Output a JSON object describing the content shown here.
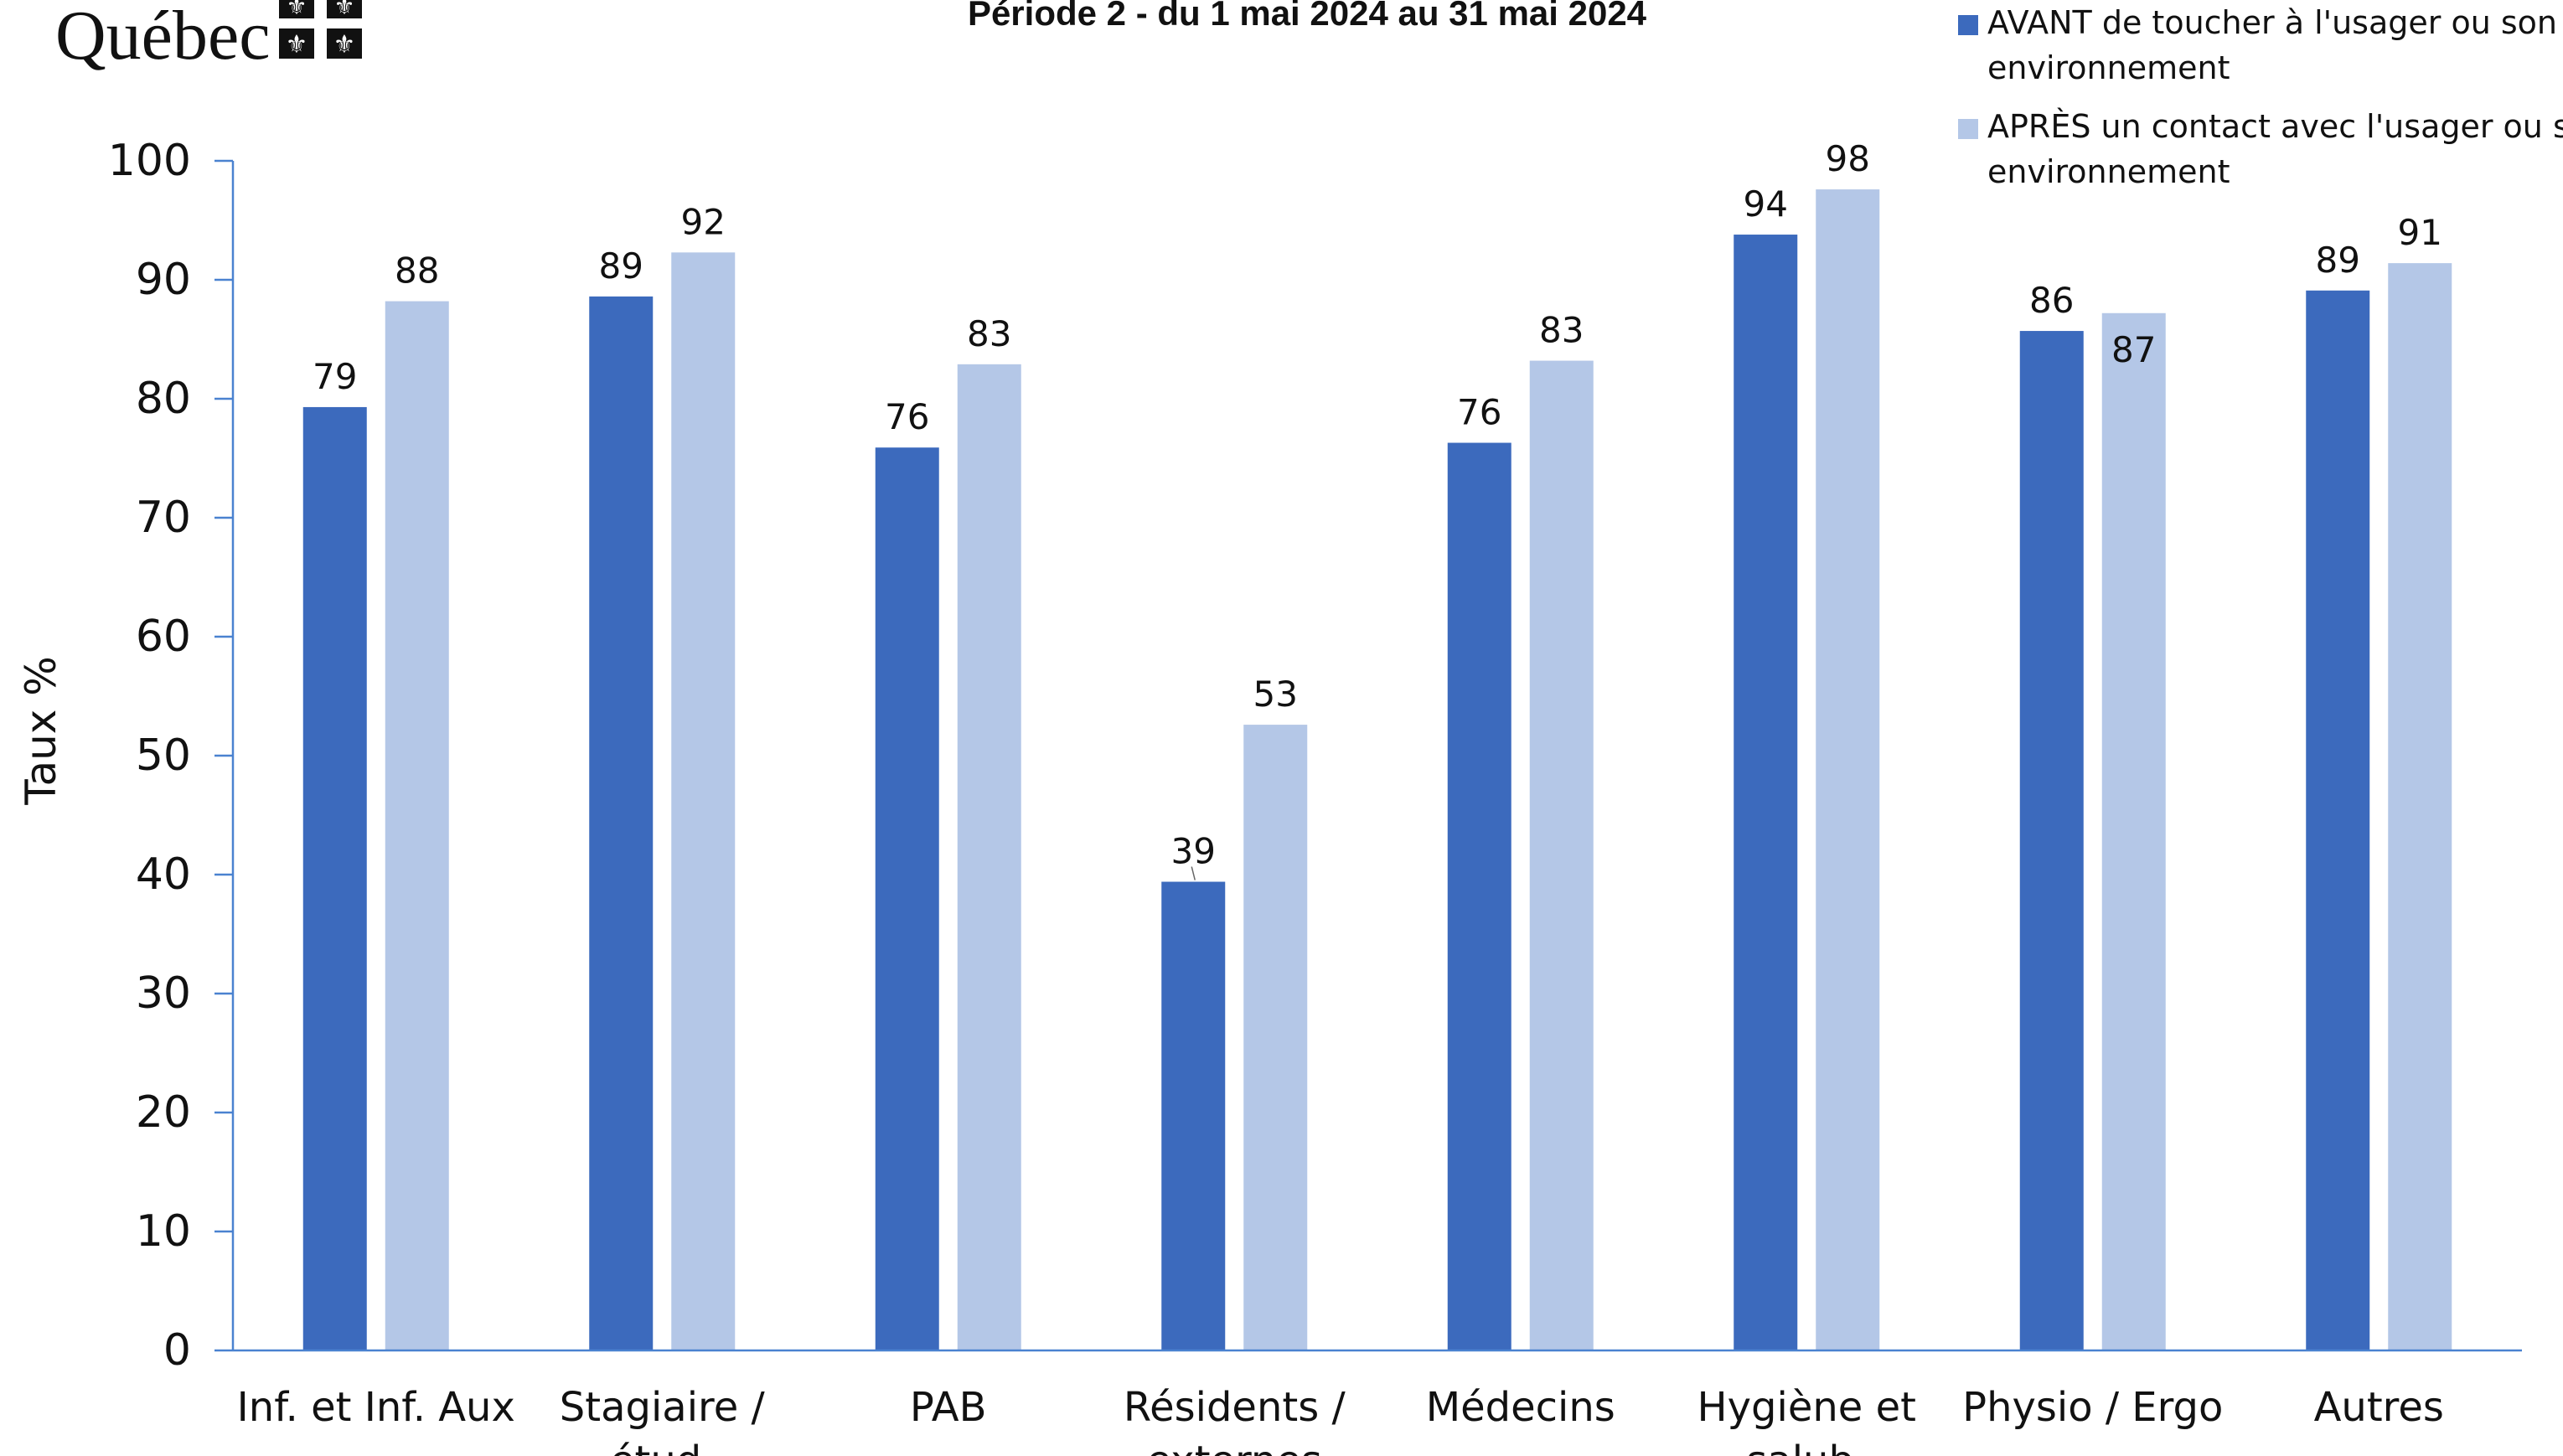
{
  "logo": {
    "text": "Québec"
  },
  "chart_data": {
    "type": "bar",
    "title": "Période 2 - du 1 mai 2024 au 31 mai 2024",
    "ylabel": "Taux %",
    "xlabel": "",
    "ylim": [
      0,
      100
    ],
    "yticks": [
      0,
      10,
      20,
      30,
      40,
      50,
      60,
      70,
      80,
      90,
      100
    ],
    "grid": false,
    "legend_position": "top-right",
    "categories": [
      [
        "Inf. et Inf. Aux"
      ],
      [
        "Stagiaire /",
        "étud."
      ],
      [
        "PAB"
      ],
      [
        "Résidents /",
        "externes"
      ],
      [
        "Médecins"
      ],
      [
        "Hygiène et",
        "salub."
      ],
      [
        "Physio / Ergo"
      ],
      [
        "Autres"
      ]
    ],
    "series": [
      {
        "name": [
          "AVANT de toucher à l'usager ou son",
          "environnement"
        ],
        "color": "#3c6abd",
        "values": [
          79.3,
          88.6,
          75.9,
          39.4,
          76.3,
          93.8,
          85.7,
          89.1
        ],
        "labels": [
          "79",
          "89",
          "76",
          "39",
          "76",
          "94",
          "86",
          "89"
        ]
      },
      {
        "name": [
          "APRÈS un contact avec l'usager ou son",
          "environnement"
        ],
        "color": "#b4c7e7",
        "values": [
          88.2,
          92.3,
          82.9,
          52.6,
          83.2,
          97.6,
          87.2,
          91.4
        ],
        "labels": [
          "88",
          "92",
          "83",
          "53",
          "83",
          "98",
          "87",
          "91"
        ]
      }
    ]
  }
}
